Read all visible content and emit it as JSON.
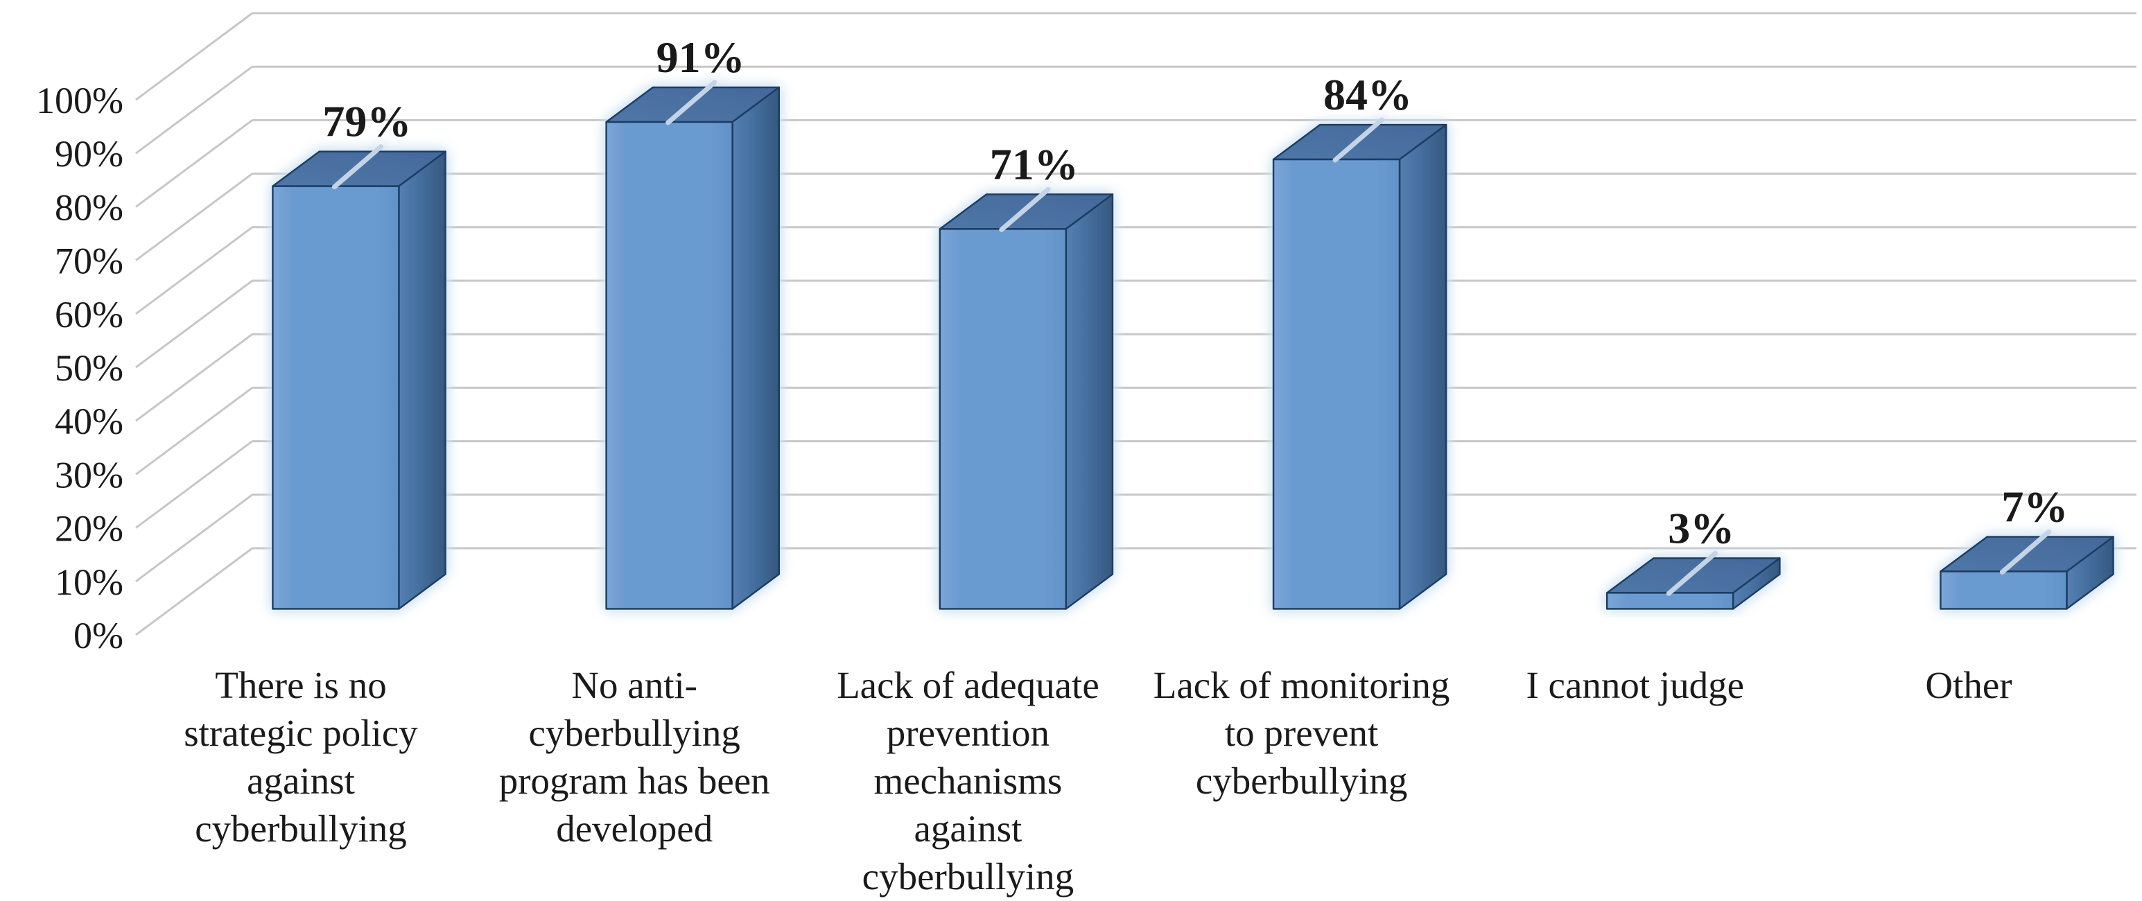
{
  "chart_data": {
    "type": "bar",
    "style": "3d-clustered-column",
    "title": "",
    "xlabel": "",
    "ylabel": "",
    "grid": true,
    "legend": "none",
    "categories": [
      {
        "label": "There is no strategic policy against cyberbullying",
        "lines": [
          "There is no",
          "strategic policy",
          "against",
          "cyberbullying"
        ]
      },
      {
        "label": "No anti-cyberbullying program has been developed",
        "lines": [
          "No anti-",
          "cyberbullying",
          "program has been",
          "developed"
        ]
      },
      {
        "label": "Lack of adequate prevention mechanisms against cyberbullying",
        "lines": [
          "Lack of adequate",
          "prevention",
          "mechanisms",
          "against",
          "cyberbullying"
        ]
      },
      {
        "label": "Lack of monitoring to prevent cyberbullying",
        "lines": [
          "Lack of monitoring",
          "to prevent",
          "cyberbullying"
        ]
      },
      {
        "label": "I cannot judge",
        "lines": [
          "I cannot judge"
        ]
      },
      {
        "label": "Other",
        "lines": [
          "Other"
        ]
      }
    ],
    "values": [
      79,
      91,
      71,
      84,
      3,
      7
    ],
    "data_labels": [
      "79%",
      "91%",
      "71%",
      "84%",
      "3%",
      "7%"
    ],
    "y_axis": {
      "min": 0,
      "max": 100,
      "step": 10,
      "tick_labels": [
        "0%",
        "10%",
        "20%",
        "30%",
        "40%",
        "50%",
        "60%",
        "70%",
        "80%",
        "90%",
        "100%"
      ]
    },
    "colors": {
      "bar_front": "#6B9BD0",
      "bar_front_light": "#7CA6D8",
      "bar_front_dark": "#6093C9",
      "bar_top": "#44699B",
      "bar_top_light": "#4F77A7",
      "bar_side": "#456F9F",
      "bar_side_light": "#567FB0",
      "bar_side_dark": "#35587F",
      "bar_outline": "#1F3C64",
      "bar_top_tick": "#C3D4E8",
      "gridline": "#C7C7C9",
      "text": "#1A1A1A",
      "glow": "#CFE2F3",
      "background": "#FFFFFF"
    }
  }
}
